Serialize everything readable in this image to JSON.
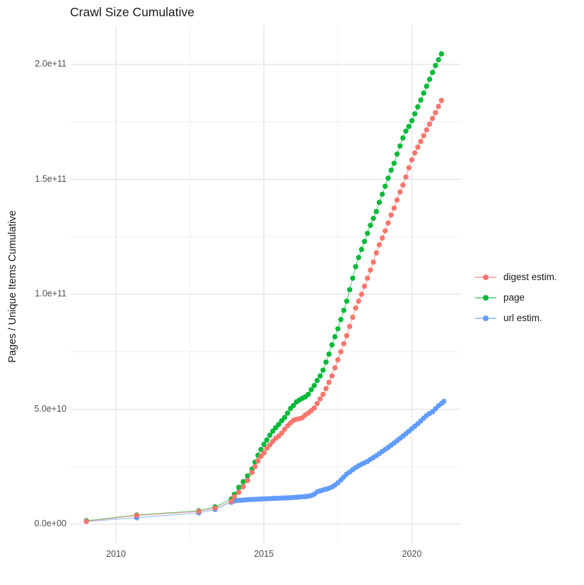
{
  "chart_data": {
    "type": "line",
    "mark": "point+line",
    "title": "Crawl Size Cumulative",
    "xlabel": "",
    "ylabel": "Pages / Unique Items Cumulative",
    "values_unit": "items, stored in billions (multiply by 1e9)",
    "x_axis": {
      "domain": [
        2008.5,
        2021.7
      ],
      "major_breaks": [
        2010,
        2015,
        2020
      ],
      "minor_breaks": [
        2012.5,
        2017.5
      ],
      "tick_labels": [
        "2010",
        "2015",
        "2020"
      ]
    },
    "y_axis": {
      "domain_billions": [
        -8,
        217
      ],
      "major_breaks_billions": [
        0,
        50,
        100,
        150,
        200
      ],
      "minor_breaks_billions": [
        25,
        75,
        125,
        175
      ],
      "tick_labels": [
        "0.0e+00",
        "5.0e+10",
        "1.0e+11",
        "1.5e+11",
        "2.0e+11"
      ]
    },
    "grid": "major+minor, light grey on white",
    "legend_position": "right",
    "series": [
      {
        "name": "digest estim.",
        "color": "#F8766D",
        "points_year_billions": [
          [
            2009.0,
            1.2
          ],
          [
            2010.7,
            3.8
          ],
          [
            2012.8,
            5.5
          ],
          [
            2013.35,
            7.0
          ],
          [
            2013.9,
            10
          ],
          [
            2014.0,
            12
          ],
          [
            2014.15,
            13.8
          ],
          [
            2014.3,
            16.3
          ],
          [
            2014.45,
            19
          ],
          [
            2014.6,
            22.5
          ],
          [
            2014.7,
            25
          ],
          [
            2014.8,
            27.5
          ],
          [
            2014.9,
            29.5
          ],
          [
            2015.0,
            31
          ],
          [
            2015.1,
            33
          ],
          [
            2015.2,
            34.5
          ],
          [
            2015.3,
            36
          ],
          [
            2015.4,
            37.4
          ],
          [
            2015.5,
            38.3
          ],
          [
            2015.6,
            39.6
          ],
          [
            2015.7,
            41.3
          ],
          [
            2015.8,
            42.8
          ],
          [
            2015.9,
            44
          ],
          [
            2016.0,
            45.2
          ],
          [
            2016.1,
            45.6
          ],
          [
            2016.2,
            45.9
          ],
          [
            2016.3,
            46.3
          ],
          [
            2016.4,
            47.5
          ],
          [
            2016.5,
            48.3
          ],
          [
            2016.6,
            49.4
          ],
          [
            2016.7,
            50.5
          ],
          [
            2016.8,
            52.5
          ],
          [
            2016.9,
            54.5
          ],
          [
            2017.0,
            56.5
          ],
          [
            2017.1,
            59
          ],
          [
            2017.2,
            61.7
          ],
          [
            2017.3,
            64.5
          ],
          [
            2017.4,
            68
          ],
          [
            2017.5,
            71.5
          ],
          [
            2017.6,
            75
          ],
          [
            2017.7,
            78.5
          ],
          [
            2017.8,
            82
          ],
          [
            2017.9,
            86
          ],
          [
            2018.0,
            90
          ],
          [
            2018.1,
            94
          ],
          [
            2018.2,
            97
          ],
          [
            2018.3,
            100
          ],
          [
            2018.4,
            103.5
          ],
          [
            2018.5,
            107
          ],
          [
            2018.6,
            110.5
          ],
          [
            2018.7,
            114
          ],
          [
            2018.8,
            118
          ],
          [
            2018.9,
            121.5
          ],
          [
            2019.0,
            124.5
          ],
          [
            2019.1,
            127.6
          ],
          [
            2019.2,
            131
          ],
          [
            2019.3,
            134.5
          ],
          [
            2019.4,
            137.5
          ],
          [
            2019.5,
            141
          ],
          [
            2019.6,
            144.5
          ],
          [
            2019.7,
            147.5
          ],
          [
            2019.8,
            151
          ],
          [
            2019.9,
            155
          ],
          [
            2020.0,
            158.5
          ],
          [
            2020.1,
            161.5
          ],
          [
            2020.2,
            164
          ],
          [
            2020.3,
            166.5
          ],
          [
            2020.4,
            169
          ],
          [
            2020.5,
            171.5
          ],
          [
            2020.6,
            174
          ],
          [
            2020.7,
            176.5
          ],
          [
            2020.8,
            179
          ],
          [
            2020.9,
            181.7
          ],
          [
            2021.0,
            184.3
          ]
        ]
      },
      {
        "name": "page",
        "color": "#00BA38",
        "points_year_billions": [
          [
            2009.0,
            1.5
          ],
          [
            2010.7,
            4.0
          ],
          [
            2012.8,
            5.8
          ],
          [
            2013.35,
            7.5
          ],
          [
            2013.9,
            11
          ],
          [
            2014.0,
            13
          ],
          [
            2014.15,
            16
          ],
          [
            2014.3,
            18.5
          ],
          [
            2014.45,
            21
          ],
          [
            2014.6,
            24
          ],
          [
            2014.7,
            27
          ],
          [
            2014.8,
            30
          ],
          [
            2014.9,
            32.5
          ],
          [
            2015.0,
            34.7
          ],
          [
            2015.1,
            36.6
          ],
          [
            2015.2,
            38.7
          ],
          [
            2015.3,
            40.5
          ],
          [
            2015.4,
            42
          ],
          [
            2015.5,
            43.4
          ],
          [
            2015.6,
            45
          ],
          [
            2015.7,
            46.4
          ],
          [
            2015.8,
            48.3
          ],
          [
            2015.9,
            50.3
          ],
          [
            2016.0,
            51.6
          ],
          [
            2016.1,
            53.2
          ],
          [
            2016.2,
            54
          ],
          [
            2016.3,
            54.8
          ],
          [
            2016.4,
            55.4
          ],
          [
            2016.5,
            56.5
          ],
          [
            2016.6,
            58.5
          ],
          [
            2016.7,
            60.3
          ],
          [
            2016.8,
            62.5
          ],
          [
            2016.9,
            64.5
          ],
          [
            2017.0,
            67
          ],
          [
            2017.1,
            70.5
          ],
          [
            2017.2,
            74
          ],
          [
            2017.3,
            78
          ],
          [
            2017.4,
            81.5
          ],
          [
            2017.5,
            85
          ],
          [
            2017.6,
            89
          ],
          [
            2017.7,
            93
          ],
          [
            2017.8,
            97
          ],
          [
            2017.9,
            102
          ],
          [
            2018.0,
            107
          ],
          [
            2018.1,
            112
          ],
          [
            2018.2,
            116
          ],
          [
            2018.3,
            119.5
          ],
          [
            2018.4,
            123
          ],
          [
            2018.5,
            126.5
          ],
          [
            2018.6,
            130
          ],
          [
            2018.7,
            133
          ],
          [
            2018.8,
            136
          ],
          [
            2018.9,
            140
          ],
          [
            2019.0,
            143.5
          ],
          [
            2019.1,
            147
          ],
          [
            2019.2,
            150.5
          ],
          [
            2019.3,
            154
          ],
          [
            2019.4,
            157
          ],
          [
            2019.5,
            161
          ],
          [
            2019.6,
            164.5
          ],
          [
            2019.7,
            168
          ],
          [
            2019.8,
            171
          ],
          [
            2019.9,
            173
          ],
          [
            2020.0,
            175.5
          ],
          [
            2020.1,
            178.5
          ],
          [
            2020.2,
            181.5
          ],
          [
            2020.3,
            184.5
          ],
          [
            2020.4,
            187.5
          ],
          [
            2020.5,
            190.5
          ],
          [
            2020.6,
            193.5
          ],
          [
            2020.7,
            196.5
          ],
          [
            2020.8,
            199.5
          ],
          [
            2020.9,
            202
          ],
          [
            2021.0,
            204.6
          ]
        ]
      },
      {
        "name": "url estim.",
        "color": "#619CFF",
        "points_year_billions": [
          [
            2009.0,
            1.2
          ],
          [
            2010.7,
            2.8
          ],
          [
            2012.8,
            4.9
          ],
          [
            2013.35,
            6.4
          ],
          [
            2013.9,
            9.5
          ],
          [
            2014.0,
            10.1
          ],
          [
            2014.1,
            10.3
          ],
          [
            2014.2,
            10.4
          ],
          [
            2014.3,
            10.5
          ],
          [
            2014.4,
            10.6
          ],
          [
            2014.5,
            10.7
          ],
          [
            2014.6,
            10.75
          ],
          [
            2014.7,
            10.8
          ],
          [
            2014.8,
            10.9
          ],
          [
            2014.9,
            10.95
          ],
          [
            2015.0,
            11.0
          ],
          [
            2015.1,
            11.05
          ],
          [
            2015.2,
            11.1
          ],
          [
            2015.3,
            11.2
          ],
          [
            2015.4,
            11.25
          ],
          [
            2015.5,
            11.3
          ],
          [
            2015.6,
            11.35
          ],
          [
            2015.7,
            11.4
          ],
          [
            2015.8,
            11.45
          ],
          [
            2015.9,
            11.5
          ],
          [
            2016.0,
            11.6
          ],
          [
            2016.1,
            11.7
          ],
          [
            2016.2,
            11.8
          ],
          [
            2016.3,
            11.9
          ],
          [
            2016.4,
            12.0
          ],
          [
            2016.5,
            12.2
          ],
          [
            2016.6,
            12.5
          ],
          [
            2016.7,
            13.0
          ],
          [
            2016.8,
            14.1
          ],
          [
            2016.9,
            14.5
          ],
          [
            2017.0,
            14.9
          ],
          [
            2017.1,
            15.2
          ],
          [
            2017.2,
            15.6
          ],
          [
            2017.3,
            16.2
          ],
          [
            2017.4,
            17.0
          ],
          [
            2017.5,
            18.0
          ],
          [
            2017.6,
            19.2
          ],
          [
            2017.7,
            20.5
          ],
          [
            2017.8,
            21.8
          ],
          [
            2017.9,
            22.7
          ],
          [
            2018.0,
            23.7
          ],
          [
            2018.1,
            24.6
          ],
          [
            2018.2,
            25.4
          ],
          [
            2018.3,
            26.1
          ],
          [
            2018.4,
            26.7
          ],
          [
            2018.5,
            27.3
          ],
          [
            2018.6,
            28.2
          ],
          [
            2018.7,
            29.0
          ],
          [
            2018.8,
            29.8
          ],
          [
            2018.9,
            30.7
          ],
          [
            2019.0,
            31.6
          ],
          [
            2019.1,
            32.5
          ],
          [
            2019.2,
            33.4
          ],
          [
            2019.3,
            34.4
          ],
          [
            2019.4,
            35.3
          ],
          [
            2019.5,
            36.3
          ],
          [
            2019.6,
            37.3
          ],
          [
            2019.7,
            38.3
          ],
          [
            2019.8,
            39.4
          ],
          [
            2019.9,
            40.4
          ],
          [
            2020.0,
            41.5
          ],
          [
            2020.1,
            42.6
          ],
          [
            2020.2,
            43.7
          ],
          [
            2020.3,
            44.9
          ],
          [
            2020.4,
            46.1
          ],
          [
            2020.5,
            47.3
          ],
          [
            2020.6,
            48.2
          ],
          [
            2020.7,
            48.9
          ],
          [
            2020.8,
            50.2
          ],
          [
            2020.9,
            51.5
          ],
          [
            2021.0,
            52.5
          ],
          [
            2021.08,
            53.4
          ]
        ]
      }
    ]
  },
  "colors": {
    "grid_major": "#E2E2E2",
    "grid_minor": "#F0F0F0",
    "axis_text": "#4d4d4d",
    "text": "#1a1a1a",
    "background": "#ffffff"
  }
}
